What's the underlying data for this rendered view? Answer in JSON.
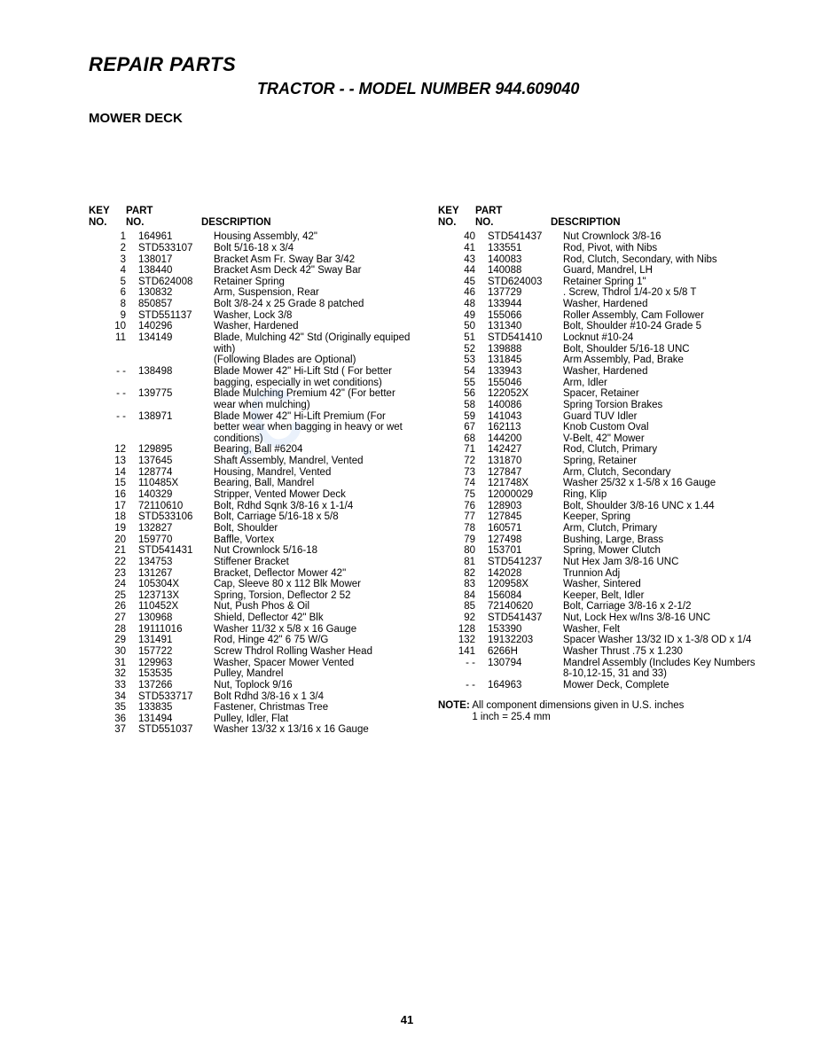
{
  "header": {
    "title": "REPAIR PARTS",
    "subtitle": "TRACTOR - - MODEL NUMBER 944.609040",
    "section": "MOWER DECK"
  },
  "columns": {
    "headers": {
      "key": "KEY",
      "keyno": "NO.",
      "part": "PART",
      "partno": "NO.",
      "desc": "DESCRIPTION"
    }
  },
  "left_rows": [
    {
      "k": "1",
      "p": "164961",
      "d": "Housing Assembly, 42\""
    },
    {
      "k": "2",
      "p": "STD533107",
      "d": "Bolt 5/16-18 x 3/4"
    },
    {
      "k": "3",
      "p": "138017",
      "d": "Bracket Asm Fr. Sway Bar 3/42"
    },
    {
      "k": "4",
      "p": "138440",
      "d": "Bracket Asm Deck 42\" Sway Bar"
    },
    {
      "k": "5",
      "p": "STD624008",
      "d": "Retainer Spring"
    },
    {
      "k": "6",
      "p": "130832",
      "d": "Arm, Suspension, Rear"
    },
    {
      "k": "8",
      "p": "850857",
      "d": "Bolt 3/8-24 x 25 Grade 8 patched"
    },
    {
      "k": "9",
      "p": "STD551137",
      "d": "Washer, Lock 3/8"
    },
    {
      "k": "10",
      "p": "140296",
      "d": "Washer, Hardened"
    },
    {
      "k": "11",
      "p": "134149",
      "d": "Blade, Mulching 42\" Std (Originally equiped with)"
    },
    {
      "k": "",
      "p": "",
      "d": "(Following Blades are Optional)"
    },
    {
      "k": "- -",
      "p": "138498",
      "d": "Blade Mower 42\" Hi-Lift Std ( For better bagging, especially in wet conditions)"
    },
    {
      "k": "- -",
      "p": "139775",
      "d": "Blade Mulching Premium 42\" (For better wear when mulching)"
    },
    {
      "k": "- -",
      "p": "138971",
      "d": "Blade Mower 42\" Hi-Lift Premium (For better wear when bagging in heavy or wet conditions)"
    },
    {
      "k": "12",
      "p": "129895",
      "d": "Bearing, Ball #6204"
    },
    {
      "k": "13",
      "p": "137645",
      "d": "Shaft Assembly, Mandrel, Vented"
    },
    {
      "k": "14",
      "p": "128774",
      "d": "Housing, Mandrel, Vented"
    },
    {
      "k": "15",
      "p": "110485X",
      "d": "Bearing, Ball, Mandrel"
    },
    {
      "k": "16",
      "p": "140329",
      "d": "Stripper, Vented Mower Deck"
    },
    {
      "k": "17",
      "p": "72110610",
      "d": "Bolt, Rdhd Sqnk 3/8-16 x 1-1/4"
    },
    {
      "k": "18",
      "p": "STD533106",
      "d": "Bolt, Carriage 5/16-18 x 5/8"
    },
    {
      "k": "19",
      "p": "132827",
      "d": "Bolt, Shoulder"
    },
    {
      "k": "20",
      "p": "159770",
      "d": "Baffle, Vortex"
    },
    {
      "k": "21",
      "p": "STD541431",
      "d": "Nut Crownlock 5/16-18"
    },
    {
      "k": "22",
      "p": "134753",
      "d": "Stiffener Bracket"
    },
    {
      "k": "23",
      "p": "131267",
      "d": "Bracket, Deflector Mower 42\""
    },
    {
      "k": "24",
      "p": "105304X",
      "d": "Cap, Sleeve 80 x 112 Blk Mower"
    },
    {
      "k": "25",
      "p": "123713X",
      "d": "Spring, Torsion, Deflector 2 52"
    },
    {
      "k": "26",
      "p": "110452X",
      "d": "Nut, Push Phos & Oil"
    },
    {
      "k": "27",
      "p": "130968",
      "d": "Shield, Deflector 42\" Blk"
    },
    {
      "k": "28",
      "p": "19111016",
      "d": "Washer 11/32 x 5/8 x 16 Gauge"
    },
    {
      "k": "29",
      "p": "131491",
      "d": "Rod, Hinge 42\" 6 75 W/G"
    },
    {
      "k": "30",
      "p": "157722",
      "d": "Screw Thdrol Rolling Washer Head"
    },
    {
      "k": "31",
      "p": "129963",
      "d": "Washer, Spacer Mower Vented"
    },
    {
      "k": "32",
      "p": "153535",
      "d": "Pulley, Mandrel"
    },
    {
      "k": "33",
      "p": "137266",
      "d": "Nut, Toplock 9/16"
    },
    {
      "k": "34",
      "p": "STD533717",
      "d": "Bolt Rdhd 3/8-16 x 1 3/4"
    },
    {
      "k": "35",
      "p": "133835",
      "d": "Fastener, Christmas Tree"
    },
    {
      "k": "36",
      "p": "131494",
      "d": "Pulley, Idler, Flat"
    },
    {
      "k": "37",
      "p": "STD551037",
      "d": "Washer 13/32 x 13/16 x 16 Gauge"
    }
  ],
  "right_rows": [
    {
      "k": "40",
      "p": "STD541437",
      "d": "Nut Crownlock 3/8-16"
    },
    {
      "k": "41",
      "p": "133551",
      "d": "Rod, Pivot, with Nibs"
    },
    {
      "k": "43",
      "p": "140083",
      "d": "Rod, Clutch, Secondary, with Nibs"
    },
    {
      "k": "44",
      "p": "140088",
      "d": "Guard, Mandrel, LH"
    },
    {
      "k": "45",
      "p": "STD624003",
      "d": "Retainer Spring 1\""
    },
    {
      "k": "46",
      "p": "137729",
      "d": ". Screw, Thdrol 1/4-20 x 5/8 T"
    },
    {
      "k": "48",
      "p": "133944",
      "d": "Washer, Hardened"
    },
    {
      "k": "49",
      "p": "155066",
      "d": "Roller Assembly, Cam Follower"
    },
    {
      "k": "50",
      "p": "131340",
      "d": "Bolt, Shoulder #10-24 Grade 5"
    },
    {
      "k": "51",
      "p": "STD541410",
      "d": "Locknut #10-24"
    },
    {
      "k": "52",
      "p": "139888",
      "d": "Bolt, Shoulder 5/16-18 UNC"
    },
    {
      "k": "53",
      "p": "131845",
      "d": "Arm Assembly, Pad, Brake"
    },
    {
      "k": "54",
      "p": "133943",
      "d": "Washer, Hardened"
    },
    {
      "k": "55",
      "p": "155046",
      "d": "Arm, Idler"
    },
    {
      "k": "56",
      "p": "122052X",
      "d": "Spacer, Retainer"
    },
    {
      "k": "58",
      "p": "140086",
      "d": "Spring Torsion Brakes"
    },
    {
      "k": "59",
      "p": "141043",
      "d": "Guard TUV Idler"
    },
    {
      "k": "67",
      "p": "162113",
      "d": "Knob Custom Oval"
    },
    {
      "k": "68",
      "p": "144200",
      "d": "V-Belt, 42\" Mower"
    },
    {
      "k": "71",
      "p": "142427",
      "d": "Rod, Clutch, Primary"
    },
    {
      "k": "72",
      "p": "131870",
      "d": "Spring, Retainer"
    },
    {
      "k": "73",
      "p": "127847",
      "d": "Arm, Clutch, Secondary"
    },
    {
      "k": "74",
      "p": "121748X",
      "d": "Washer 25/32 x 1-5/8 x 16 Gauge"
    },
    {
      "k": "75",
      "p": "12000029",
      "d": "Ring, Klip"
    },
    {
      "k": "76",
      "p": "128903",
      "d": "Bolt, Shoulder 3/8-16 UNC x 1.44"
    },
    {
      "k": "77",
      "p": "127845",
      "d": "Keeper, Spring"
    },
    {
      "k": "78",
      "p": "160571",
      "d": "Arm, Clutch, Primary"
    },
    {
      "k": "79",
      "p": "127498",
      "d": "Bushing, Large, Brass"
    },
    {
      "k": "80",
      "p": "153701",
      "d": "Spring, Mower Clutch"
    },
    {
      "k": "81",
      "p": "STD541237",
      "d": "Nut Hex Jam 3/8-16 UNC"
    },
    {
      "k": "82",
      "p": "142028",
      "d": "Trunnion Adj"
    },
    {
      "k": "83",
      "p": "120958X",
      "d": "Washer, Sintered"
    },
    {
      "k": "84",
      "p": "156084",
      "d": "Keeper, Belt, Idler"
    },
    {
      "k": "85",
      "p": "72140620",
      "d": "Bolt, Carriage 3/8-16 x 2-1/2"
    },
    {
      "k": "92",
      "p": "STD541437",
      "d": "Nut, Lock Hex w/Ins 3/8-16 UNC"
    },
    {
      "k": "128",
      "p": "153390",
      "d": "Washer, Felt"
    },
    {
      "k": "132",
      "p": "19132203",
      "d": "Spacer Washer 13/32 ID x 1-3/8 OD x 1/4"
    },
    {
      "k": "141",
      "p": "6266H",
      "d": "Washer Thrust .75 x 1.230"
    },
    {
      "k": "- -",
      "p": "130794",
      "d": "Mandrel Assembly (Includes Key Numbers 8-10,12-15, 31 and 33)"
    },
    {
      "k": "- -",
      "p": "164963",
      "d": "Mower Deck, Complete"
    }
  ],
  "note": {
    "label": "NOTE:",
    "text1": "All component dimensions given in U.S. inches",
    "text2": "1 inch = 25.4 mm"
  },
  "page_number": "41"
}
